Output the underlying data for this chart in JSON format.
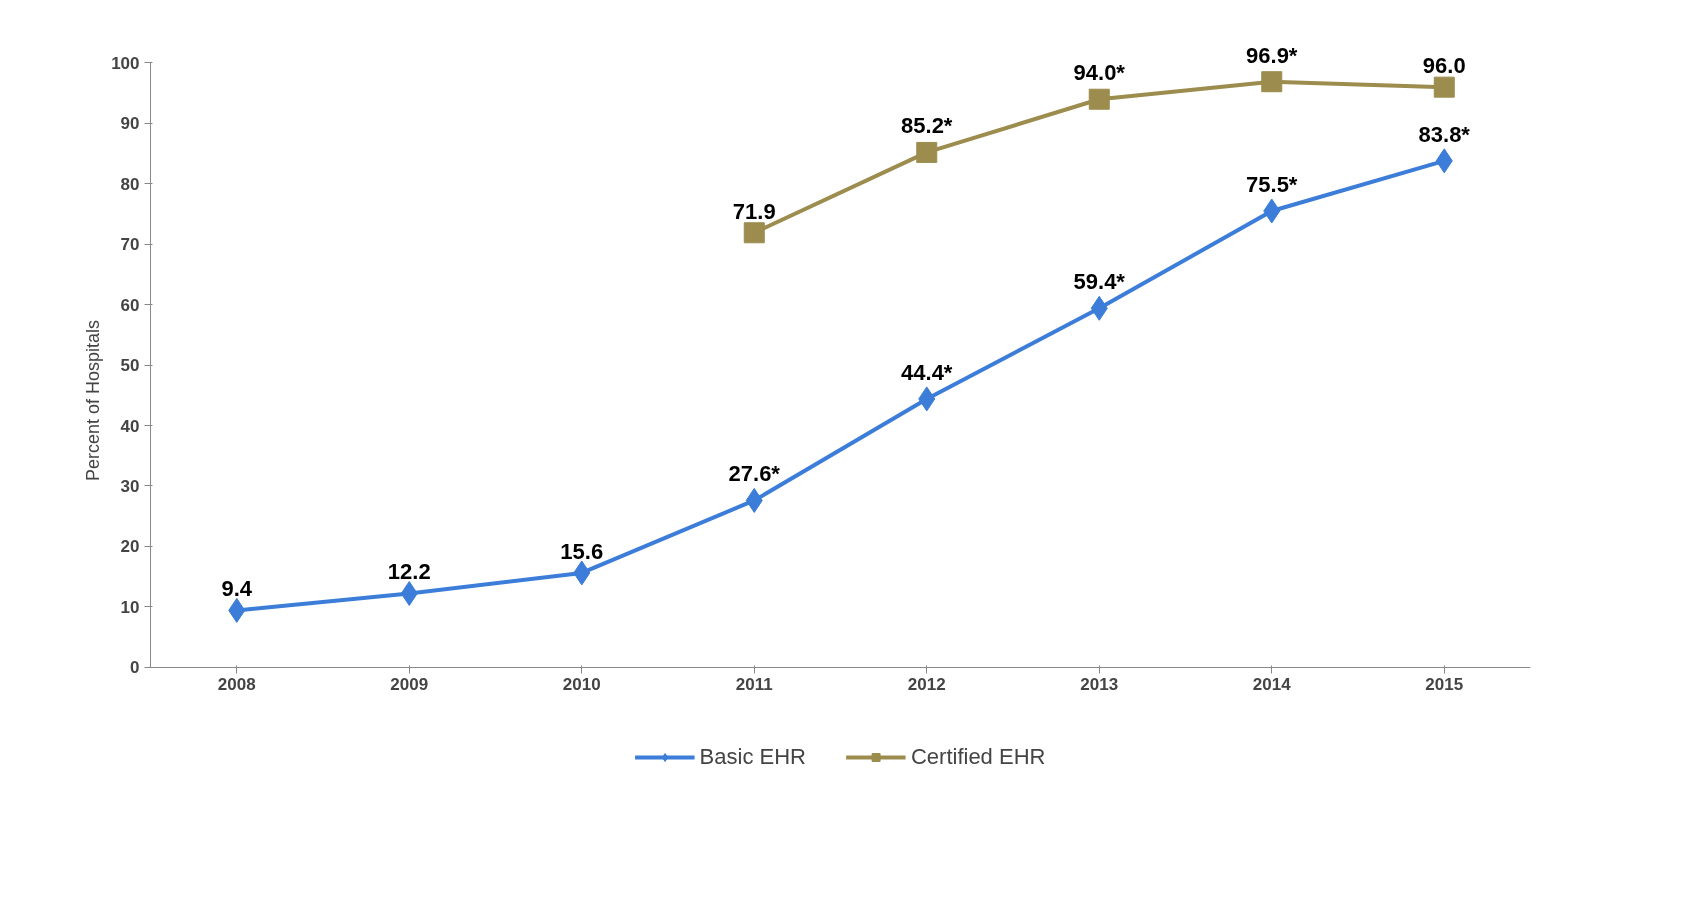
{
  "chart_data": {
    "type": "line",
    "ylabel": "Percent of Hospitals",
    "categories": [
      "2008",
      "2009",
      "2010",
      "2011",
      "2012",
      "2013",
      "2014",
      "2015"
    ],
    "series": [
      {
        "name": "Basic EHR",
        "color": "#3b7dd8",
        "marker": "diamond",
        "values": [
          9.4,
          12.2,
          15.6,
          27.6,
          44.4,
          59.4,
          75.5,
          83.8
        ],
        "value_labels": [
          "9.4",
          "12.2",
          "15.6",
          "27.6*",
          "44.4*",
          "59.4*",
          "75.5*",
          "83.8*"
        ]
      },
      {
        "name": "Certified EHR",
        "color": "#9c8c4e",
        "marker": "square",
        "values": [
          null,
          null,
          null,
          71.9,
          85.2,
          94.0,
          96.9,
          96.0
        ],
        "value_labels": [
          null,
          null,
          null,
          "71.9",
          "85.2*",
          "94.0*",
          "96.9*",
          "96.0"
        ]
      }
    ],
    "ylim": [
      0,
      100
    ],
    "yticks": [
      0,
      10,
      20,
      30,
      40,
      50,
      60,
      70,
      80,
      90,
      100
    ],
    "grid": false,
    "legend": "bottom",
    "line_style": "solid"
  }
}
